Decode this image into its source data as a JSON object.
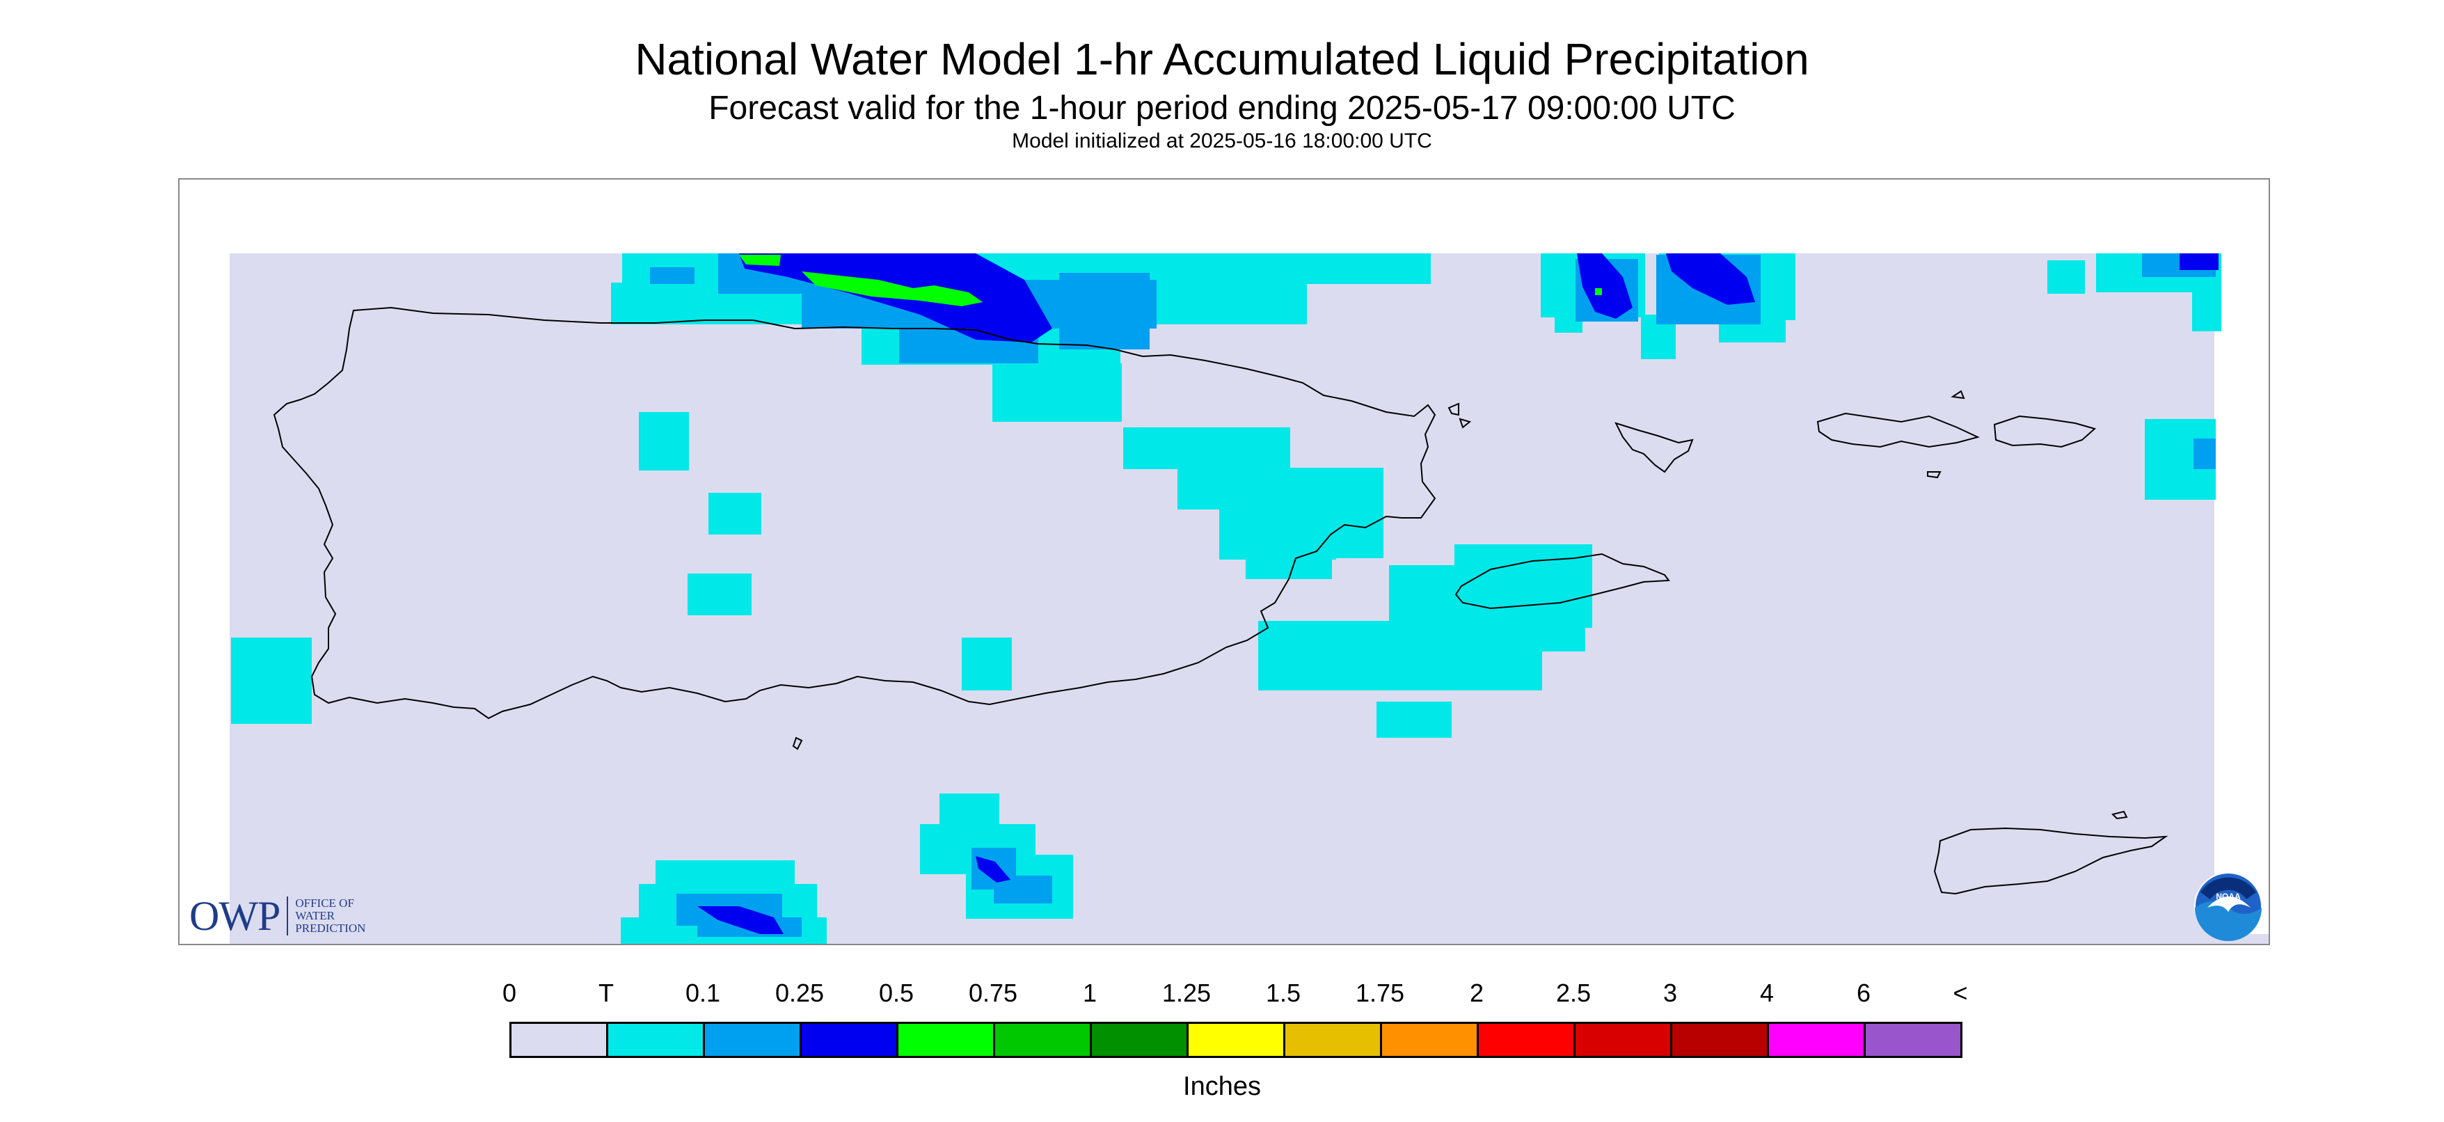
{
  "title": "National Water Model 1-hr Accumulated Liquid Precipitation",
  "subtitle": "Forecast valid for the 1-hour period ending 2025-05-17 09:00:00 UTC",
  "init_line": "Model initialized at 2025-05-16 18:00:00 UTC",
  "logos": {
    "owp_mark": "OWP",
    "owp_text": [
      "OFFICE OF",
      "WATER",
      "PREDICTION"
    ],
    "noaa_text": "NOAA"
  },
  "legend": {
    "labels": [
      "0",
      "T",
      "0.1",
      "0.25",
      "0.5",
      "0.75",
      "1",
      "1.25",
      "1.5",
      "1.75",
      "2",
      "2.5",
      "3",
      "4",
      "6",
      "<"
    ],
    "colors": [
      "#dcdcf0",
      "#00e8e8",
      "#00a0f0",
      "#0000f0",
      "#00ff00",
      "#00c800",
      "#009000",
      "#ffff00",
      "#e6c000",
      "#ff9000",
      "#ff0000",
      "#d80000",
      "#b80000",
      "#ff00ff",
      "#9955cc"
    ],
    "units": "Inches"
  },
  "colors": {
    "background": "#dcdcf0",
    "trace": "#00e8e8",
    "light": "#00a0f0",
    "moderate": "#0000f0",
    "green": "#00ff00"
  }
}
